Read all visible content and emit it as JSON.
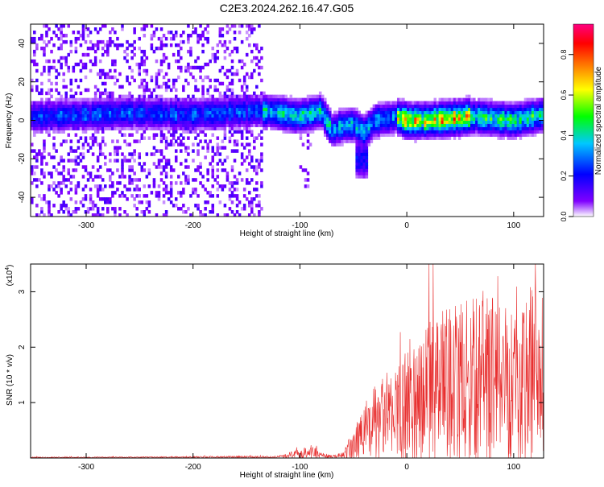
{
  "title": "C2E3.2024.262.16.47.G05",
  "chart_data": [
    {
      "type": "heatmap",
      "title": "C2E3.2024.262.16.47.G05",
      "xlabel": "Height of straight line (km)",
      "ylabel": "Frequency (Hz)",
      "xlim": [
        -352,
        128
      ],
      "ylim": [
        -50,
        50
      ],
      "xticks": [
        -300,
        -200,
        -100,
        0,
        100
      ],
      "yticks": [
        -40,
        -20,
        0,
        20,
        40
      ],
      "xtick_labels": [
        "-300",
        "-200",
        "-100",
        "0",
        "100"
      ],
      "ytick_labels": [
        "-40",
        "-20",
        "0",
        "20",
        "40"
      ],
      "colorbar": {
        "label": "Normalized spectral amplitude",
        "range": [
          0,
          0.95
        ],
        "ticks": [
          0.0,
          0.2,
          0.4,
          0.6,
          0.8
        ],
        "tick_labels": [
          "0.0",
          "0.2",
          "0.4",
          "0.6",
          "0.8"
        ],
        "colormap": [
          "#ffffff",
          "#8000ff",
          "#0000ff",
          "#00c8ff",
          "#00ff00",
          "#ffff00",
          "#ff8000",
          "#ff0000",
          "#ff0080"
        ]
      },
      "ridge_center_hz": {
        "x": [
          -352,
          -300,
          -260,
          -200,
          -140,
          -120,
          -100,
          -80,
          -70,
          -60,
          -50,
          -40,
          -30,
          -20,
          -10,
          0,
          20,
          40,
          60,
          80,
          100,
          128
        ],
        "y": [
          2,
          3,
          4,
          3,
          5,
          4,
          2,
          5,
          -5,
          -3,
          -2,
          -6,
          0,
          1,
          2,
          0,
          0,
          1,
          2,
          1,
          0,
          3
        ]
      },
      "band_halfwidth_hz": 6,
      "peak_amplitude": 0.9
    },
    {
      "type": "line",
      "xlabel": "Height of straight line (km)",
      "ylabel": "SNR (10 * v/v)",
      "y_multiplier": "(x10",
      "y_multiplier_exp": "4",
      "y_multiplier_close": ")",
      "xlim": [
        -352,
        128
      ],
      "ylim": [
        0,
        3.5
      ],
      "xticks": [
        -300,
        -200,
        -100,
        0,
        100
      ],
      "yticks": [
        1,
        2,
        3
      ],
      "xtick_labels": [
        "-300",
        "-200",
        "-100",
        "0",
        "100"
      ],
      "ytick_labels": [
        "1",
        "2",
        "3"
      ],
      "color": "#e83030",
      "envelope": {
        "x": [
          -352,
          -250,
          -150,
          -120,
          -100,
          -90,
          -80,
          -70,
          -60,
          -50,
          -40,
          -30,
          -20,
          -10,
          0,
          10,
          20,
          40,
          60,
          80,
          100,
          110,
          120,
          128
        ],
        "median": [
          0.01,
          0.015,
          0.02,
          0.02,
          0.08,
          0.12,
          0.05,
          0.02,
          0.05,
          0.2,
          0.45,
          0.6,
          0.7,
          0.85,
          0.95,
          1.1,
          1.2,
          1.35,
          1.4,
          1.45,
          1.5,
          1.45,
          1.4,
          1.4
        ],
        "spread": [
          0.01,
          0.01,
          0.02,
          0.02,
          0.1,
          0.15,
          0.06,
          0.03,
          0.06,
          0.35,
          0.6,
          0.8,
          0.9,
          1.0,
          1.1,
          1.3,
          1.4,
          1.55,
          1.65,
          1.7,
          1.8,
          1.85,
          1.85,
          1.8
        ]
      }
    }
  ]
}
